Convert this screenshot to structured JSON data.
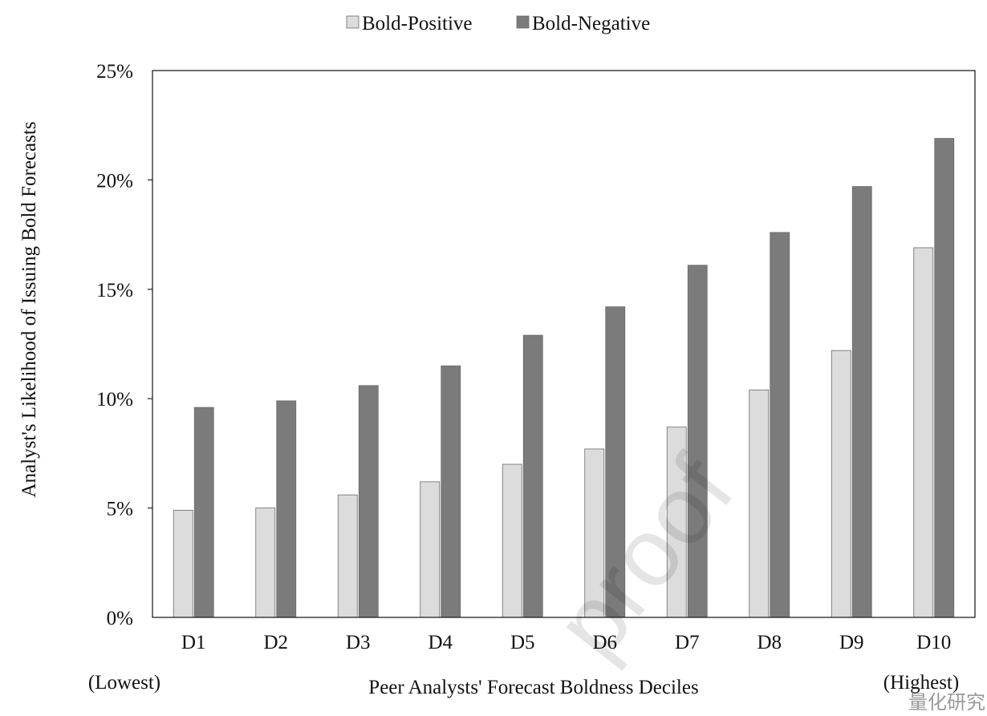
{
  "chart_data": {
    "type": "bar",
    "title": "",
    "xlabel": "Peer Analysts' Forecast Boldness Deciles",
    "ylabel": "Analyst's Likelihood of Issuing Bold Forecasts",
    "categories": [
      "D1",
      "D2",
      "D3",
      "D4",
      "D5",
      "D6",
      "D7",
      "D8",
      "D9",
      "D10"
    ],
    "series": [
      {
        "name": "Bold-Positive",
        "color": "#dcdcdc",
        "values": [
          4.9,
          5.0,
          5.6,
          6.2,
          7.0,
          7.7,
          8.7,
          10.4,
          12.2,
          16.9
        ]
      },
      {
        "name": "Bold-Negative",
        "color": "#7b7b7b",
        "values": [
          9.6,
          9.9,
          10.6,
          11.5,
          12.9,
          14.2,
          16.1,
          17.6,
          19.7,
          21.9
        ]
      }
    ],
    "ylim": [
      0,
      25
    ],
    "y_ticks": [
      "0%",
      "5%",
      "10%",
      "15%",
      "20%",
      "25%"
    ],
    "y_tick_values": [
      0,
      5,
      10,
      15,
      20,
      25
    ],
    "legend_position": "top-center",
    "grid": false,
    "x_edge_labels": {
      "left": "(Lowest)",
      "right": "(Highest)"
    }
  },
  "watermark": "proof",
  "corner_mark": "量化研究"
}
